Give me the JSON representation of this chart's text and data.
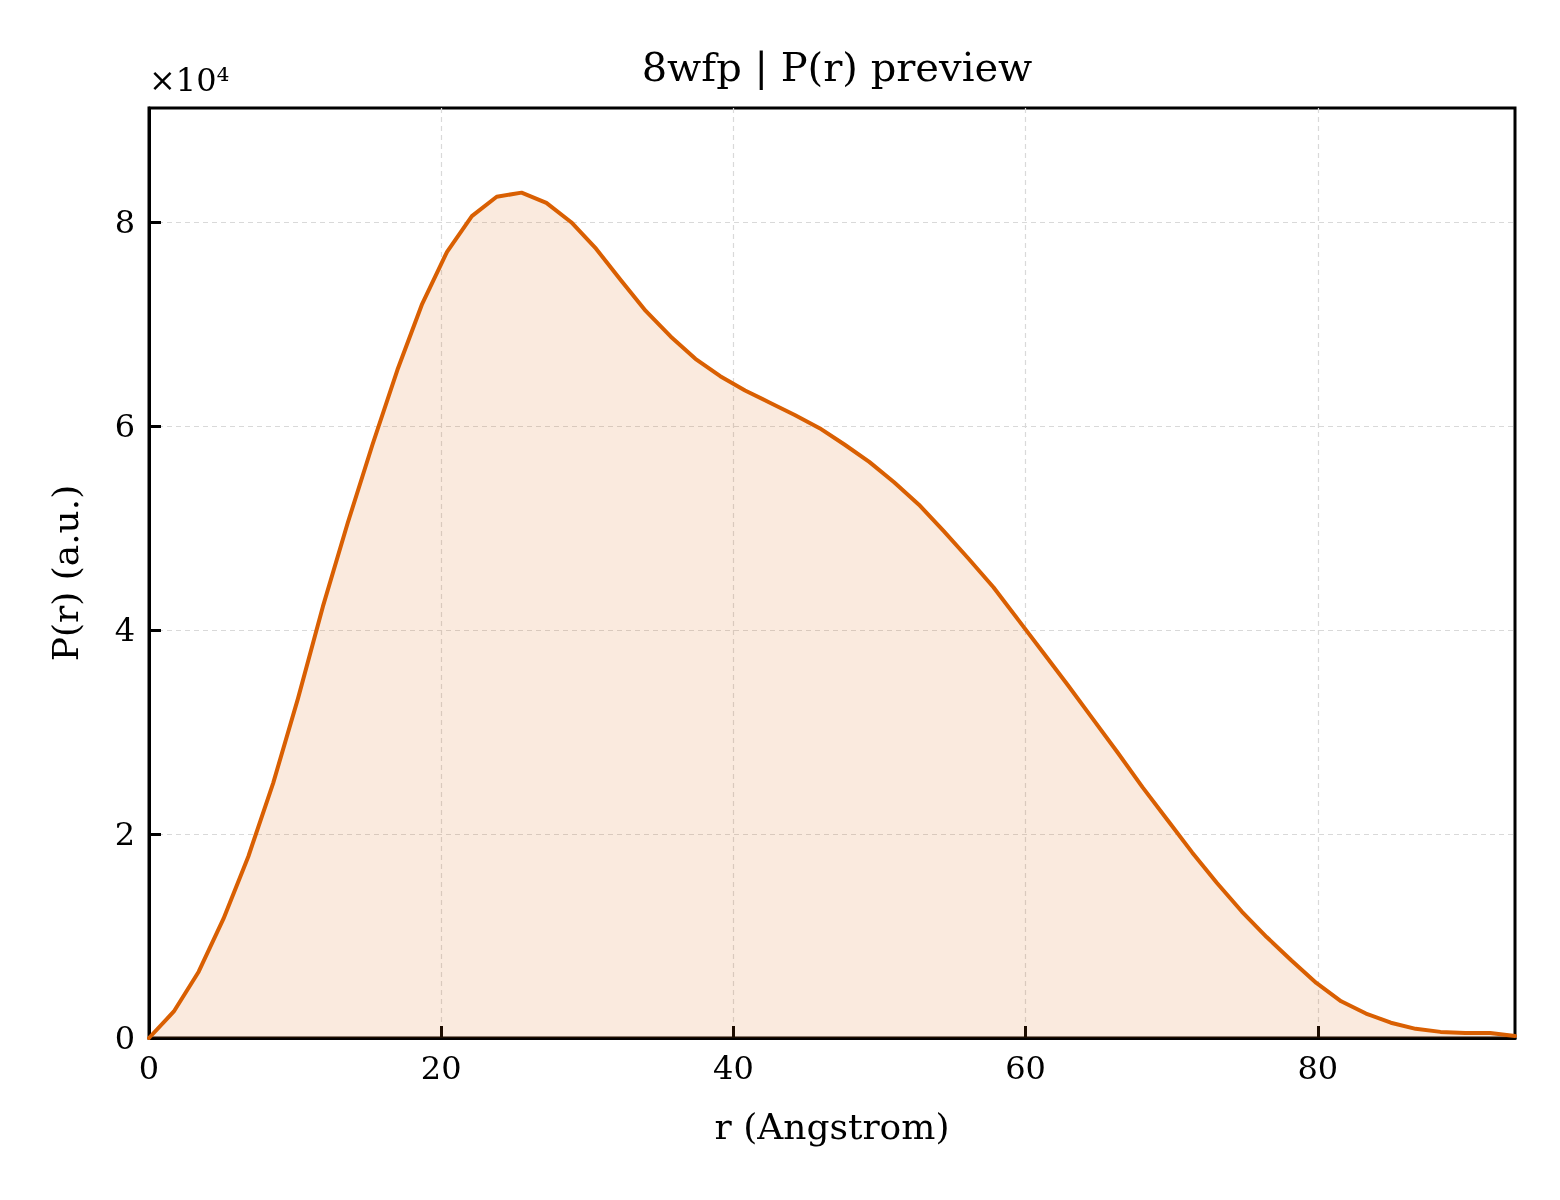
{
  "chart_data": {
    "type": "area",
    "title": "8wfp | P(r) preview",
    "xlabel": "r (Angstrom)",
    "ylabel": "P(r) (a.u.)",
    "annotations": [
      "×10⁴"
    ],
    "x": [
      0,
      1.7,
      3.4,
      5.1,
      6.8,
      8.5,
      10.2,
      11.9,
      13.6,
      15.3,
      17,
      18.7,
      20.4,
      22.1,
      23.8,
      25.5,
      27.2,
      28.9,
      30.6,
      32.3,
      34,
      35.7,
      37.4,
      39.1,
      40.8,
      42.5,
      44.2,
      45.9,
      47.6,
      49.3,
      51,
      52.7,
      54.4,
      56.1,
      57.8,
      59.5,
      61.2,
      62.9,
      64.6,
      66.3,
      68,
      69.7,
      71.4,
      73.1,
      74.8,
      76.5,
      78.2,
      79.9,
      81.6,
      83.3,
      85,
      86.7,
      88.4,
      90.1,
      91.8,
      93.5
    ],
    "series": [
      {
        "color": "#d95f02",
        "values": [
          0,
          0.26,
          0.65,
          1.17,
          1.78,
          2.5,
          3.33,
          4.23,
          5.05,
          5.82,
          6.55,
          7.2,
          7.71,
          8.06,
          8.25,
          8.29,
          8.19,
          8,
          7.74,
          7.43,
          7.13,
          6.88,
          6.66,
          6.49,
          6.35,
          6.23,
          6.11,
          5.98,
          5.82,
          5.65,
          5.45,
          5.23,
          4.97,
          4.7,
          4.42,
          4.1,
          3.78,
          3.46,
          3.13,
          2.8,
          2.46,
          2.14,
          1.82,
          1.52,
          1.24,
          0.99,
          0.76,
          0.54,
          0.36,
          0.24,
          0.15,
          0.09,
          0.06,
          0.05,
          0.05,
          0.02
        ]
      }
    ],
    "xlim": [
      0,
      93.5
    ],
    "xticks": [
      0,
      20,
      40,
      60,
      80
    ],
    "ylim": [
      0,
      9.12
    ],
    "yticks": [
      0,
      2,
      4,
      6,
      8
    ],
    "grid": true
  }
}
